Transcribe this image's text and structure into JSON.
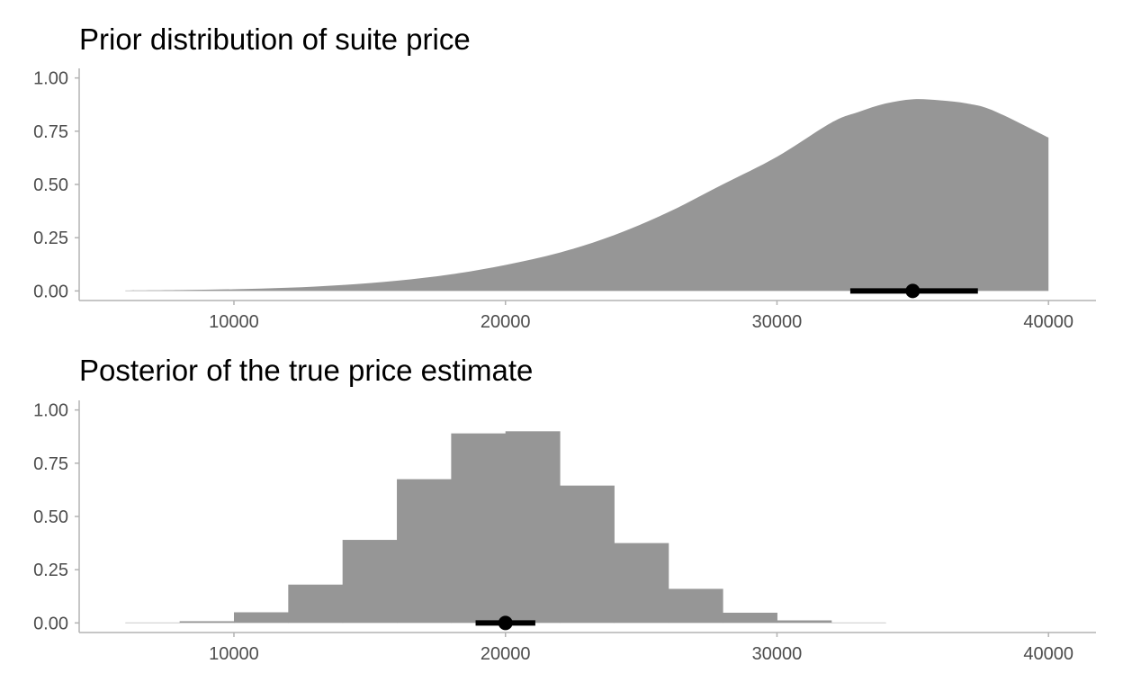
{
  "chart_data": [
    {
      "type": "area",
      "title": "Prior distribution of suite price",
      "xlabel": "",
      "ylabel": "",
      "xlim": [
        4300,
        41750
      ],
      "ylim": [
        -0.045,
        1.045
      ],
      "x_ticks": [
        10000,
        20000,
        30000,
        40000
      ],
      "y_ticks": [
        0.0,
        0.25,
        0.5,
        0.75,
        1.0
      ],
      "x_tick_labels": [
        "10000",
        "20000",
        "30000",
        "40000"
      ],
      "y_tick_labels": [
        "0.00",
        "0.25",
        "0.50",
        "0.75",
        "1.00"
      ],
      "grid": false,
      "fill_color": "#969696",
      "density": {
        "x": [
          6000,
          8000,
          10000,
          12000,
          14000,
          16000,
          18000,
          20000,
          22000,
          24000,
          26000,
          28000,
          30000,
          32000,
          33000,
          34000,
          35000,
          36000,
          37000,
          38000,
          40000
        ],
        "y": [
          0.002,
          0.004,
          0.008,
          0.015,
          0.028,
          0.048,
          0.078,
          0.122,
          0.18,
          0.262,
          0.37,
          0.5,
          0.63,
          0.79,
          0.84,
          0.88,
          0.9,
          0.895,
          0.88,
          0.845,
          0.72
        ]
      },
      "point_interval": {
        "point": 35000,
        "lower": 32700,
        "upper": 37400,
        "color": "#000000"
      }
    },
    {
      "type": "bar",
      "title": "Posterior of the true price estimate",
      "xlabel": "",
      "ylabel": "",
      "xlim": [
        4300,
        41750
      ],
      "ylim": [
        -0.045,
        1.045
      ],
      "x_ticks": [
        10000,
        20000,
        30000,
        40000
      ],
      "y_ticks": [
        0.0,
        0.25,
        0.5,
        0.75,
        1.0
      ],
      "x_tick_labels": [
        "10000",
        "20000",
        "30000",
        "40000"
      ],
      "y_tick_labels": [
        "0.00",
        "0.25",
        "0.50",
        "0.75",
        "1.00"
      ],
      "grid": false,
      "fill_color": "#969696",
      "histogram": {
        "bin_edges": [
          6000,
          8000,
          10000,
          12000,
          14000,
          16000,
          18000,
          20000,
          22000,
          24000,
          26000,
          28000,
          30000,
          32000,
          34000
        ],
        "values": [
          0.002,
          0.008,
          0.05,
          0.18,
          0.39,
          0.675,
          0.89,
          0.9,
          0.645,
          0.375,
          0.16,
          0.048,
          0.012,
          0.002
        ]
      },
      "point_interval": {
        "point": 20000,
        "lower": 18900,
        "upper": 21100,
        "color": "#000000"
      }
    }
  ]
}
